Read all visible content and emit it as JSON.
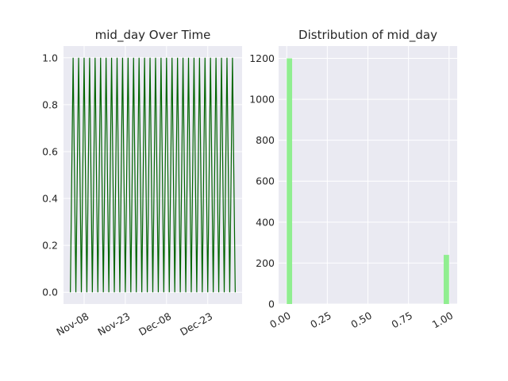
{
  "chart_data": [
    {
      "type": "line",
      "title": "mid_day Over Time",
      "xlabel": "",
      "ylabel": "",
      "x_range": [
        "2025-11-03",
        "2026-01-02"
      ],
      "ylim": [
        -0.05,
        1.05
      ],
      "x_ticks": [
        "Nov-08",
        "Nov-23",
        "Dec-08",
        "Dec-23"
      ],
      "y_ticks": [
        "0.0",
        "0.2",
        "0.4",
        "0.6",
        "0.8",
        "1.0"
      ],
      "series": [
        {
          "color": "#006400",
          "pattern": "alternating 0/1 daily",
          "x": [
            "2025-11-03",
            "2025-11-04",
            "2025-11-05",
            "2025-11-06",
            "2025-11-07",
            "2025-11-08",
            "2025-11-09",
            "2025-11-10",
            "2025-11-11",
            "2025-11-12",
            "2025-11-13",
            "2025-11-14",
            "2025-11-15",
            "2025-11-16",
            "2025-11-17",
            "2025-11-18",
            "2025-11-19",
            "2025-11-20",
            "2025-11-21",
            "2025-11-22",
            "2025-11-23",
            "2025-11-24",
            "2025-11-25",
            "2025-11-26",
            "2025-11-27",
            "2025-11-28",
            "2025-11-29",
            "2025-11-30",
            "2025-12-01",
            "2025-12-02",
            "2025-12-03",
            "2025-12-04",
            "2025-12-05",
            "2025-12-06",
            "2025-12-07",
            "2025-12-08",
            "2025-12-09",
            "2025-12-10",
            "2025-12-11",
            "2025-12-12",
            "2025-12-13",
            "2025-12-14",
            "2025-12-15",
            "2025-12-16",
            "2025-12-17",
            "2025-12-18",
            "2025-12-19",
            "2025-12-20",
            "2025-12-21",
            "2025-12-22",
            "2025-12-23",
            "2025-12-24",
            "2025-12-25",
            "2025-12-26",
            "2025-12-27",
            "2025-12-28",
            "2025-12-29",
            "2025-12-30",
            "2025-12-31",
            "2026-01-01",
            "2026-01-02"
          ],
          "y": [
            0,
            1,
            0,
            1,
            0,
            1,
            0,
            1,
            0,
            1,
            0,
            1,
            0,
            1,
            0,
            1,
            0,
            1,
            0,
            1,
            0,
            1,
            0,
            1,
            0,
            1,
            0,
            1,
            0,
            1,
            0,
            1,
            0,
            1,
            0,
            1,
            0,
            1,
            0,
            1,
            0,
            1,
            0,
            1,
            0,
            1,
            0,
            1,
            0,
            1,
            0,
            1,
            0,
            1,
            0,
            1,
            0,
            1,
            0,
            1,
            0
          ]
        }
      ],
      "grid": true
    },
    {
      "type": "bar",
      "title": "Distribution of mid_day",
      "xlabel": "",
      "ylabel": "",
      "xlim": [
        -0.05,
        1.05
      ],
      "ylim": [
        0,
        1260
      ],
      "x_ticks": [
        "0.00",
        "0.25",
        "0.50",
        "0.75",
        "1.00"
      ],
      "y_ticks": [
        "0",
        "200",
        "400",
        "600",
        "800",
        "1000",
        "1200"
      ],
      "bins": [
        {
          "x0": 0.0,
          "x1": 0.0333,
          "count": 1200
        },
        {
          "x0": 0.9667,
          "x1": 1.0,
          "count": 240
        }
      ],
      "color": "#90EE90",
      "grid": true
    }
  ]
}
